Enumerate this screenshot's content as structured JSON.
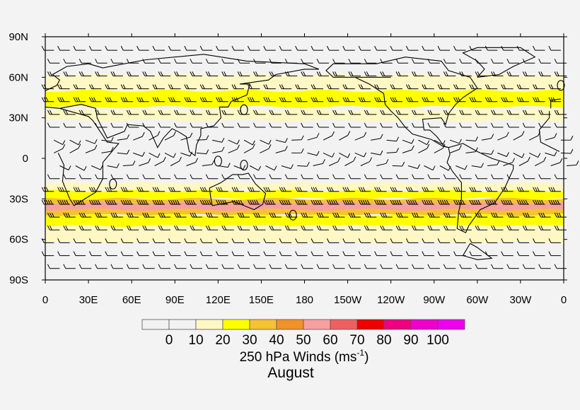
{
  "map": {
    "title": "250 hPa Winds (ms",
    "title_sup": "-1",
    "title_close": ")",
    "subtitle": "August",
    "lat_labels": [
      "90N",
      "60N",
      "30N",
      "0",
      "30S",
      "60S",
      "90S"
    ],
    "lon_labels": [
      "0",
      "30E",
      "60E",
      "90E",
      "120E",
      "150E",
      "180",
      "150W",
      "120W",
      "90W",
      "60W",
      "30W",
      "0"
    ],
    "colorbar": {
      "labels": [
        "0",
        "10",
        "20",
        "30",
        "40",
        "50",
        "60",
        "70",
        "80",
        "90",
        "100"
      ],
      "colors": [
        "#f2f2f2",
        "#f2f2f2",
        "#fff8c4",
        "#ffff00",
        "#f5c232",
        "#f0922a",
        "#f7a0a0",
        "#ee6060",
        "#ee0000",
        "#ee0080",
        "#ee00cc",
        "#ee00ee"
      ]
    }
  },
  "chart_data": {
    "type": "heatmap",
    "variable": "wind speed",
    "bands": [
      {
        "lat_range": [
          62,
          48
        ],
        "value": 15
      },
      {
        "lat_range": [
          50,
          38
        ],
        "value": 25
      },
      {
        "lat_range": [
          36,
          28
        ],
        "value": 15
      },
      {
        "lat_range": [
          -18,
          -24
        ],
        "value": 15
      },
      {
        "lat_range": [
          -24,
          -30
        ],
        "value": 25
      },
      {
        "lat_range": [
          -30,
          -42
        ],
        "value": 35
      },
      {
        "lat_range": [
          -33,
          -38
        ],
        "value": 55
      },
      {
        "lat_range": [
          -42,
          -50
        ],
        "value": 25
      },
      {
        "lat_range": [
          -50,
          -62
        ],
        "value": 15
      }
    ],
    "xlim": [
      0,
      360
    ],
    "ylim": [
      -90,
      90
    ]
  }
}
